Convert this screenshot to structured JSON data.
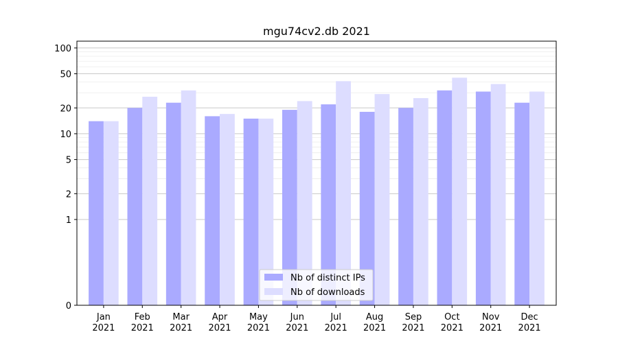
{
  "chart_data": {
    "type": "bar",
    "title": "mgu74cv2.db 2021",
    "xlabel": "",
    "ylabel": "",
    "yscale": "symlog",
    "ylim": [
      0,
      120
    ],
    "yticks": [
      0,
      1,
      2,
      5,
      10,
      20,
      50,
      100
    ],
    "categories": [
      "Jan\n2021",
      "Feb\n2021",
      "Mar\n2021",
      "Apr\n2021",
      "May\n2021",
      "Jun\n2021",
      "Jul\n2021",
      "Aug\n2021",
      "Sep\n2021",
      "Oct\n2021",
      "Nov\n2021",
      "Dec\n2021"
    ],
    "series": [
      {
        "name": "Nb of distinct IPs",
        "color": "#aaaaff",
        "values": [
          14,
          20,
          23,
          16,
          15,
          19,
          22,
          18,
          20,
          32,
          31,
          23
        ]
      },
      {
        "name": "Nb of downloads",
        "color": "#ddddff",
        "values": [
          14,
          27,
          32,
          17,
          15,
          24,
          41,
          29,
          26,
          45,
          38,
          31
        ]
      }
    ],
    "grid": true,
    "legend": "lower-center"
  }
}
